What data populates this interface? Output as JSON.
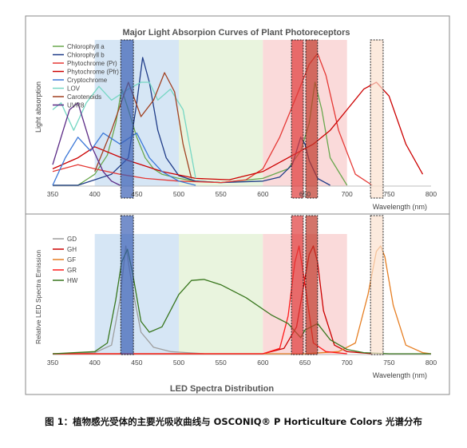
{
  "caption": "图 1：植物感光受体的主要光吸收曲线与 OSCONIQ® P Horticulture Colors 光谱分布",
  "chart_data": [
    {
      "type": "line",
      "title": "Major Light Absorpion Curves of Plant Photoreceptors",
      "xlabel": "Wavelength (nm)",
      "ylabel": "Light  absorption",
      "xlim": [
        350,
        800
      ],
      "x_ticks": [
        "350",
        "400",
        "450",
        "500",
        "550",
        "600",
        "650",
        "700",
        "750",
        "800"
      ],
      "legend_position": "top-left",
      "background_bands": [
        {
          "from": 400,
          "to": 500,
          "color": "#cfe2f3"
        },
        {
          "from": 500,
          "to": 600,
          "color": "#e5f2d8"
        },
        {
          "from": 600,
          "to": 700,
          "color": "#f9d3d3"
        }
      ],
      "highlight_boxes": [
        {
          "from": 431,
          "to": 446,
          "color": "#3b5fb5"
        },
        {
          "from": 634,
          "to": 648,
          "color": "#e03a3a"
        },
        {
          "from": 651,
          "to": 665,
          "color": "#c0392b"
        },
        {
          "from": 728,
          "to": 743,
          "color": "#fbe1cf"
        }
      ],
      "series": [
        {
          "name": "Chlorophyll a",
          "color": "#6aa84f",
          "x": [
            350,
            380,
            400,
            415,
            425,
            432,
            440,
            450,
            460,
            470,
            480,
            500,
            520,
            550,
            600,
            630,
            645,
            655,
            662,
            670,
            680,
            700
          ],
          "y": [
            0,
            0,
            0.08,
            0.22,
            0.45,
            0.7,
            0.55,
            0.35,
            0.2,
            0.12,
            0.08,
            0.05,
            0.03,
            0.02,
            0.05,
            0.12,
            0.25,
            0.45,
            0.75,
            0.55,
            0.2,
            0
          ]
        },
        {
          "name": "Chlorophyll b",
          "color": "#1f3c88",
          "x": [
            350,
            380,
            400,
            420,
            440,
            450,
            457,
            465,
            475,
            485,
            500,
            520,
            550,
            600,
            620,
            635,
            645,
            650,
            655,
            665,
            680
          ],
          "y": [
            0,
            0,
            0.04,
            0.08,
            0.2,
            0.6,
            0.93,
            0.75,
            0.4,
            0.2,
            0.07,
            0.03,
            0.02,
            0.03,
            0.06,
            0.15,
            0.35,
            0.3,
            0.18,
            0.05,
            0
          ]
        },
        {
          "name": "Phytochrome (Pr)",
          "color": "#e53935",
          "x": [
            350,
            380,
            400,
            430,
            460,
            500,
            550,
            580,
            600,
            620,
            640,
            655,
            665,
            675,
            690,
            710,
            730
          ],
          "y": [
            0.1,
            0.15,
            0.12,
            0.08,
            0.05,
            0.03,
            0.02,
            0.04,
            0.12,
            0.35,
            0.65,
            0.88,
            0.96,
            0.8,
            0.4,
            0.08,
            0
          ]
        },
        {
          "name": "Phytochrome (Pfr)",
          "color": "#cc0000",
          "x": [
            350,
            380,
            400,
            440,
            480,
            520,
            560,
            600,
            630,
            660,
            680,
            700,
            720,
            735,
            750,
            770,
            790
          ],
          "y": [
            0.12,
            0.2,
            0.28,
            0.18,
            0.1,
            0.05,
            0.04,
            0.1,
            0.2,
            0.3,
            0.4,
            0.55,
            0.7,
            0.75,
            0.65,
            0.3,
            0.08
          ]
        },
        {
          "name": "Cryptochrome",
          "color": "#3c78d8",
          "x": [
            350,
            365,
            380,
            395,
            410,
            430,
            450,
            465,
            480,
            500,
            520
          ],
          "y": [
            0,
            0.2,
            0.35,
            0.25,
            0.38,
            0.3,
            0.38,
            0.2,
            0.1,
            0.03,
            0
          ]
        },
        {
          "name": "LOV",
          "color": "#76d7c4",
          "x": [
            350,
            360,
            375,
            390,
            405,
            420,
            440,
            455,
            465,
            475,
            490,
            505,
            520
          ],
          "y": [
            0.55,
            0.6,
            0.4,
            0.6,
            0.72,
            0.62,
            0.7,
            0.75,
            0.75,
            0.62,
            0.7,
            0.55,
            0.05
          ]
        },
        {
          "name": "Carotenoids",
          "color": "#a04020",
          "x": [
            400,
            420,
            440,
            455,
            470,
            483,
            495,
            505,
            515
          ],
          "y": [
            0.1,
            0.4,
            0.75,
            0.5,
            0.62,
            0.82,
            0.68,
            0.3,
            0.05
          ]
        },
        {
          "name": "UVR8",
          "color": "#5b2a86",
          "x": [
            350,
            360,
            370,
            380,
            395,
            410,
            420,
            430
          ],
          "y": [
            0.15,
            0.35,
            0.55,
            0.6,
            0.3,
            0.1,
            0.03,
            0
          ]
        }
      ]
    },
    {
      "type": "line",
      "title": "LED Spectra Distribution",
      "xlabel": "Wavelength (nm)",
      "ylabel": "Relative LED Spectra Emission",
      "xlim": [
        350,
        800
      ],
      "x_ticks": [
        "350",
        "400",
        "450",
        "500",
        "550",
        "600",
        "650",
        "700",
        "750",
        "800"
      ],
      "legend_position": "top-left",
      "series": [
        {
          "name": "GD",
          "color": "#9e9e9e",
          "x": [
            350,
            400,
            420,
            430,
            437,
            445,
            455,
            470,
            490,
            510,
            530
          ],
          "y": [
            0,
            0.01,
            0.08,
            0.5,
            1,
            0.6,
            0.2,
            0.06,
            0.02,
            0.01,
            0
          ]
        },
        {
          "name": "GH",
          "color": "#cc0000",
          "x": [
            350,
            600,
            625,
            640,
            650,
            655,
            660,
            665,
            672,
            685,
            700,
            730
          ],
          "y": [
            0,
            0,
            0.05,
            0.25,
            0.7,
            0.92,
            1,
            0.85,
            0.4,
            0.08,
            0.02,
            0
          ]
        },
        {
          "name": "GF",
          "color": "#e67e22",
          "x": [
            350,
            650,
            690,
            710,
            725,
            735,
            740,
            745,
            755,
            770,
            790,
            800
          ],
          "y": [
            0,
            0,
            0.02,
            0.1,
            0.55,
            0.95,
            1,
            0.9,
            0.45,
            0.08,
            0.01,
            0
          ]
        },
        {
          "name": "GR",
          "color": "#ff1a1a",
          "x": [
            350,
            600,
            620,
            630,
            638,
            643,
            650,
            660,
            675,
            700
          ],
          "y": [
            0,
            0,
            0.05,
            0.35,
            0.85,
            1,
            0.65,
            0.1,
            0.02,
            0
          ]
        },
        {
          "name": "HW",
          "color": "#38761d",
          "x": [
            350,
            400,
            415,
            425,
            432,
            439,
            445,
            455,
            465,
            480,
            500,
            515,
            530,
            550,
            580,
            610,
            630,
            645,
            650,
            665,
            680,
            700,
            720,
            750,
            800
          ],
          "y": [
            0,
            0.02,
            0.1,
            0.5,
            0.85,
            0.97,
            0.75,
            0.3,
            0.2,
            0.25,
            0.55,
            0.68,
            0.69,
            0.64,
            0.52,
            0.36,
            0.28,
            0.15,
            0.22,
            0.28,
            0.13,
            0.04,
            0.01,
            0,
            0
          ]
        }
      ]
    }
  ]
}
